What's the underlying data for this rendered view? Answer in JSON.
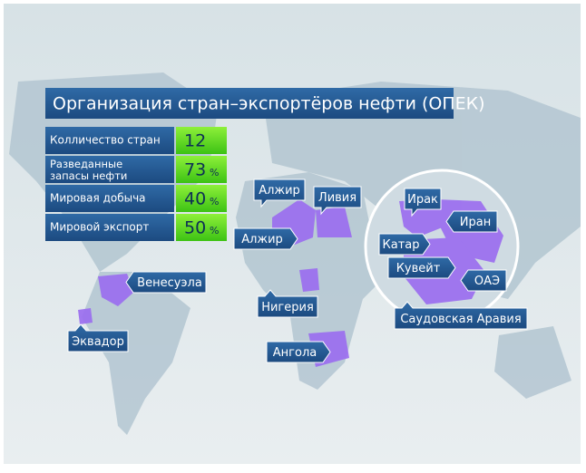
{
  "header": {
    "title": "Организация стран–экспортёров нефти (ОПЕК)"
  },
  "stats": {
    "rows": [
      {
        "label": "Колличество стран",
        "value": "12"
      },
      {
        "label": "Разведанные запасы нефти",
        "value": "73",
        "unit": "%"
      },
      {
        "label": "Мировая добыча",
        "value": "40",
        "unit": "%"
      },
      {
        "label": "Мировой экспорт",
        "value": "50",
        "unit": "%"
      }
    ]
  },
  "countries": [
    {
      "label": "Алжир"
    },
    {
      "label": "Ливия"
    },
    {
      "label": "Алжир"
    },
    {
      "label": "Венесуэла"
    },
    {
      "label": "Эквадор"
    },
    {
      "label": "Нигерия"
    },
    {
      "label": "Ангола"
    },
    {
      "label": "Ирак"
    },
    {
      "label": "Иран"
    },
    {
      "label": "Катар"
    },
    {
      "label": "Кувейт"
    },
    {
      "label": "ОАЭ"
    },
    {
      "label": "Саудовская Аравия"
    }
  ]
}
